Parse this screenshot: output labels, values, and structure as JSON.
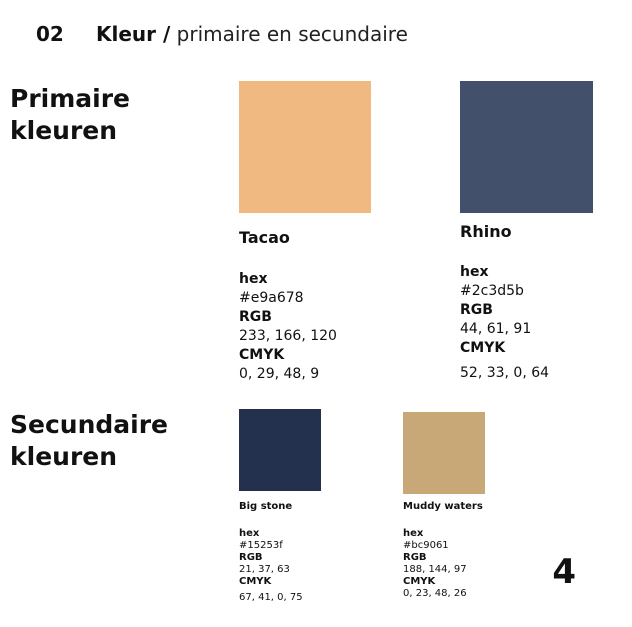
{
  "header": {
    "number": "02",
    "title": "Kleur /",
    "subtitle": "primaire en secundaire"
  },
  "primary": {
    "heading_line1": "Primaire",
    "heading_line2": "kleuren",
    "colors": [
      {
        "name": "Tacao",
        "hex_label": "hex",
        "hex": "#e9a678",
        "rgb_label": "RGB",
        "rgb": "233, 166, 120",
        "cmyk_label": "CMYK",
        "cmyk": "0, 29, 48, 9",
        "swatch": "#f0b981"
      },
      {
        "name": "Rhino",
        "hex_label": "hex",
        "hex": "#2c3d5b",
        "rgb_label": "RGB",
        "rgb": "44, 61, 91",
        "cmyk_label": "CMYK",
        "cmyk": "52, 33, 0, 64",
        "swatch": "#43506c"
      }
    ]
  },
  "secondary": {
    "heading_line1": "Secundaire",
    "heading_line2": "kleuren",
    "colors": [
      {
        "name": "Big stone",
        "hex_label": "hex",
        "hex": "#15253f",
        "rgb_label": "RGB",
        "rgb": "21, 37, 63",
        "cmyk_label": "CMYK",
        "cmyk": "67, 41, 0, 75",
        "swatch": "#23314f"
      },
      {
        "name": "Muddy waters",
        "hex_label": "hex",
        "hex": "#bc9061",
        "rgb_label": "RGB",
        "rgb": "188, 144, 97",
        "cmyk_label": "CMYK",
        "cmyk": "0, 23, 48, 26",
        "swatch": "#c9a877"
      }
    ]
  },
  "page_number": "4"
}
